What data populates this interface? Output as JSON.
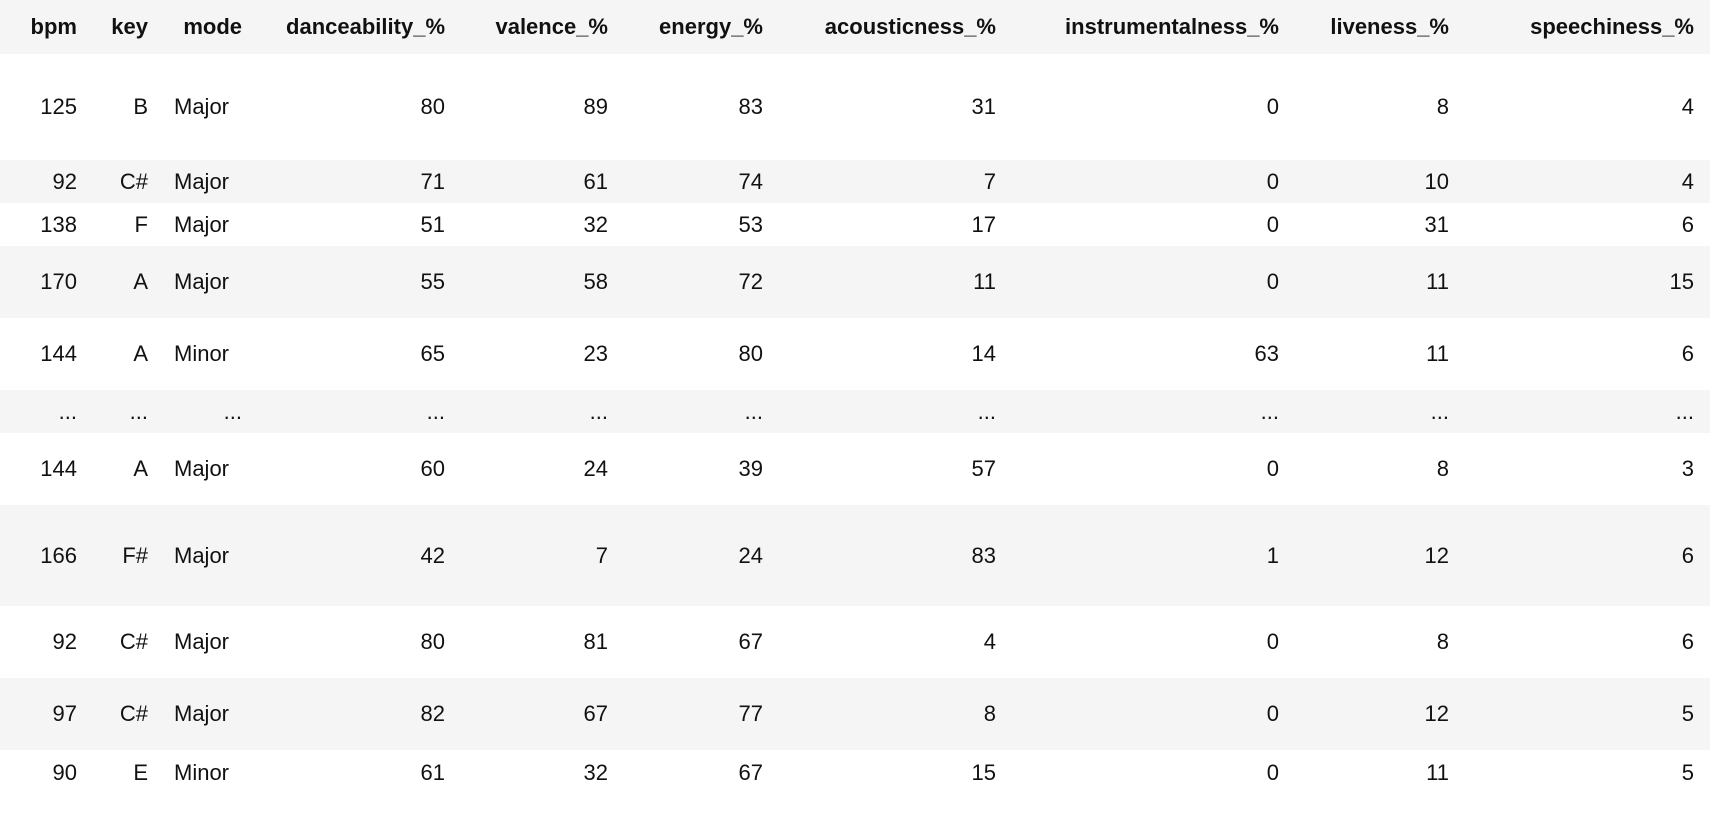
{
  "table": {
    "columns": [
      "bpm",
      "key",
      "mode",
      "danceability_%",
      "valence_%",
      "energy_%",
      "acousticness_%",
      "instrumentalness_%",
      "liveness_%",
      "speechiness_%"
    ],
    "rows": [
      [
        "125",
        "B",
        "Major",
        "80",
        "89",
        "83",
        "31",
        "0",
        "8",
        "4"
      ],
      [
        "92",
        "C#",
        "Major",
        "71",
        "61",
        "74",
        "7",
        "0",
        "10",
        "4"
      ],
      [
        "138",
        "F",
        "Major",
        "51",
        "32",
        "53",
        "17",
        "0",
        "31",
        "6"
      ],
      [
        "170",
        "A",
        "Major",
        "55",
        "58",
        "72",
        "11",
        "0",
        "11",
        "15"
      ],
      [
        "144",
        "A",
        "Minor",
        "65",
        "23",
        "80",
        "14",
        "63",
        "11",
        "6"
      ],
      [
        "...",
        "...",
        "...",
        "...",
        "...",
        "...",
        "...",
        "...",
        "...",
        "..."
      ],
      [
        "144",
        "A",
        "Major",
        "60",
        "24",
        "39",
        "57",
        "0",
        "8",
        "3"
      ],
      [
        "166",
        "F#",
        "Major",
        "42",
        "7",
        "24",
        "83",
        "1",
        "12",
        "6"
      ],
      [
        "92",
        "C#",
        "Major",
        "80",
        "81",
        "67",
        "4",
        "0",
        "8",
        "6"
      ],
      [
        "97",
        "C#",
        "Major",
        "82",
        "67",
        "77",
        "8",
        "0",
        "12",
        "5"
      ],
      [
        "90",
        "E",
        "Minor",
        "61",
        "32",
        "67",
        "15",
        "0",
        "11",
        "5"
      ]
    ]
  }
}
